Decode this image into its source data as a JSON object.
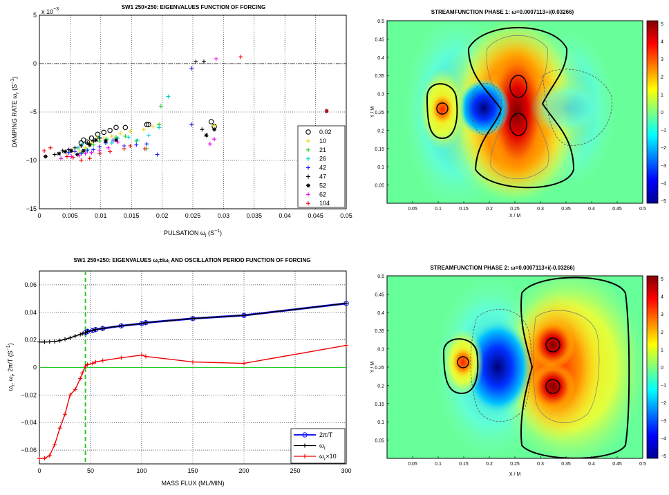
{
  "chart_data": [
    {
      "type": "scatter",
      "title": "SW1 250×250: EIGENVALUES FUNCTION OF FORCING",
      "xlabel": "PULSATION ω",
      "xlabel_sub": "i",
      "xlabel_unit": "(S",
      "xlabel_unit_sup": "−1",
      "xlabel_unit_end": ")",
      "ylabel": "DAMPING RATE ω",
      "ylabel_sub": "r",
      "ylabel_unit": "(S",
      "ylabel_unit_sup": "−1",
      "ylabel_unit_end": ")",
      "exponent_label": "x 10",
      "exponent_power": "−3",
      "xlim": [
        0,
        0.05
      ],
      "ylim": [
        -15,
        5
      ],
      "xticks": [
        "0",
        "0.005",
        "0.01",
        "0.015",
        "0.02",
        "0.025",
        "0.03",
        "0.035",
        "0.04",
        "0.045",
        "0.05"
      ],
      "yticks": [
        "5",
        "0",
        "−5",
        "−10",
        "−15"
      ],
      "grid": true,
      "legend_position": "bottom-right",
      "series": [
        {
          "name": "0.02",
          "color": "#000000",
          "marker": "circle",
          "x": [
            0.0068,
            0.0072,
            0.0078,
            0.0085,
            0.0095,
            0.0105,
            0.0115,
            0.0125,
            0.014,
            0.0175,
            0.0178,
            0.028,
            0.0285
          ],
          "y": [
            -8.2,
            -7.9,
            -8.1,
            -7.7,
            -7.3,
            -7.1,
            -6.9,
            -6.6,
            -6.6,
            -6.3,
            -6.3,
            -6.0,
            -6.5
          ]
        },
        {
          "name": "10",
          "color": "#e8d800",
          "marker": "plus",
          "x": [
            0.0065,
            0.0075,
            0.0085,
            0.0095,
            0.0105,
            0.0118,
            0.0132,
            0.0148,
            0.017,
            0.0185,
            0.0195,
            0.0285
          ],
          "y": [
            -9.0,
            -8.7,
            -8.2,
            -7.6,
            -7.7,
            -7.5,
            -7.2,
            -7.0,
            -6.8,
            -6.5,
            -6.3,
            -6.4
          ]
        },
        {
          "name": "21",
          "color": "#22cc22",
          "marker": "plus",
          "x": [
            0.0068,
            0.0078,
            0.0088,
            0.0098,
            0.011,
            0.0125,
            0.014,
            0.0158,
            0.0175,
            0.0195,
            0.0198
          ],
          "y": [
            -9.2,
            -8.9,
            -8.4,
            -8.0,
            -7.8,
            -7.6,
            -7.5,
            -8.0,
            -8.8,
            -6.3,
            -4.4
          ]
        },
        {
          "name": "26",
          "color": "#00d0d0",
          "marker": "plus",
          "x": [
            0.0063,
            0.007,
            0.0078,
            0.0088,
            0.0098,
            0.0108,
            0.0118,
            0.0128,
            0.0145,
            0.016,
            0.0178,
            0.0195,
            0.021
          ],
          "y": [
            -8.7,
            -8.3,
            -8.9,
            -8.0,
            -7.6,
            -7.9,
            -8.2,
            -7.7,
            -7.6,
            -7.9,
            -7.4,
            -6.6,
            -3.4
          ]
        },
        {
          "name": "42",
          "color": "#1a1aff",
          "marker": "plus",
          "x": [
            0.0048,
            0.0058,
            0.0068,
            0.0078,
            0.0088,
            0.0098,
            0.0108,
            0.012,
            0.0138,
            0.0158,
            0.0175,
            0.0192,
            0.0248,
            0.0248
          ],
          "y": [
            -9.2,
            -9.1,
            -9.3,
            -9.0,
            -8.9,
            -8.6,
            -8.2,
            -7.9,
            -8.5,
            -8.4,
            -8.3,
            -9.4,
            -6.3,
            -0.5
          ]
        },
        {
          "name": "47",
          "color": "#000000",
          "marker": "plus",
          "x": [
            0.0025,
            0.0038,
            0.0048,
            0.0058,
            0.0068,
            0.0078,
            0.0088,
            0.0098,
            0.0255,
            0.0265,
            0.0268
          ],
          "y": [
            -9.4,
            -9.0,
            -8.9,
            -8.7,
            -8.5,
            -8.2,
            -8.0,
            -7.7,
            0.2,
            -6.8,
            0.2
          ]
        },
        {
          "name": "52",
          "color": "#000000",
          "marker": "star",
          "x": [
            0.001,
            0.0032,
            0.0042,
            0.0052,
            0.0062,
            0.0072,
            0.0082,
            0.0092,
            0.0108,
            0.0125,
            0.0272,
            0.0285,
            0.0468
          ],
          "y": [
            -9.6,
            -9.3,
            -9.1,
            -9.0,
            -9.4,
            -9.0,
            -8.4,
            -7.9,
            -8.0,
            -7.9,
            -7.4,
            -6.8,
            -4.9
          ]
        },
        {
          "name": "62",
          "color": "#ee00ee",
          "marker": "plus",
          "x": [
            0.0035,
            0.0052,
            0.0065,
            0.0075,
            0.0085,
            0.0098,
            0.0112,
            0.0128,
            0.0278,
            0.0285,
            0.0288,
            0.0468
          ],
          "y": [
            -9.8,
            -9.6,
            -9.5,
            -9.3,
            -9.2,
            -9.0,
            -8.7,
            -8.1,
            -8.3,
            -7.8,
            0.5,
            -4.9
          ]
        },
        {
          "name": "104",
          "color": "#ee0000",
          "marker": "plus",
          "x": [
            0.0008,
            0.0018,
            0.0045,
            0.0055,
            0.0068,
            0.0082,
            0.0098,
            0.0115,
            0.0138,
            0.0148,
            0.0172,
            0.0328,
            0.0468
          ],
          "y": [
            -9.0,
            -8.7,
            -9.6,
            -9.7,
            -10.0,
            -9.8,
            -9.3,
            -9.1,
            -8.8,
            -8.5,
            -8.8,
            0.7,
            -4.9
          ]
        }
      ]
    },
    {
      "type": "line",
      "title": "SW1 250×250: EIGENVALUES ω",
      "title_sub1": "r",
      "title_mid": "±iω",
      "title_sub2": "i",
      "title_end": " AND OSCILLATION PERIOD FUNCTION OF FORCING",
      "xlabel": "MASS FLUX  (ML/MIN)",
      "ylabel": "ω",
      "ylabel_sub1": "r",
      "ylabel_mid": ", ω",
      "ylabel_sub2": "i",
      "ylabel_end": ", 2π/T  (S",
      "ylabel_sup": "−1",
      "ylabel_close": ")",
      "xlim": [
        0,
        300
      ],
      "ylim": [
        -0.07,
        0.07
      ],
      "xticks": [
        "0",
        "50",
        "100",
        "150",
        "200",
        "250",
        "300"
      ],
      "yticks": [
        "0.06",
        "0.04",
        "0.02",
        "0",
        "−0.02",
        "−0.04",
        "−0.06"
      ],
      "grid": true,
      "legend_position": "bottom-right",
      "vline_x": 45,
      "series": [
        {
          "name": "2π/T",
          "color": "#1a1aff",
          "marker": "circle",
          "x": [
            45,
            47,
            52,
            55,
            62,
            80,
            100,
            104,
            150,
            200,
            300
          ],
          "y": [
            0.0252,
            0.0262,
            0.0268,
            0.0275,
            0.0283,
            0.0302,
            0.0318,
            0.0325,
            0.0355,
            0.0378,
            0.0465
          ]
        },
        {
          "name": "ω",
          "name_sub": "i",
          "color": "#000000",
          "marker": "plus",
          "x": [
            0,
            5,
            10,
            15,
            20,
            25,
            30,
            35,
            40,
            42,
            45,
            47,
            52,
            55,
            62,
            80,
            100,
            104,
            150,
            200,
            300
          ],
          "y": [
            0.0185,
            0.0185,
            0.0186,
            0.0188,
            0.0195,
            0.0205,
            0.0215,
            0.0228,
            0.024,
            0.0245,
            0.0252,
            0.0262,
            0.0268,
            0.0275,
            0.0283,
            0.0302,
            0.0318,
            0.0325,
            0.0355,
            0.0378,
            0.0465
          ]
        },
        {
          "name": "ω",
          "name_sub": "r",
          "name_end": "×10",
          "color": "#ee0000",
          "marker": "plus",
          "x": [
            0,
            5,
            10,
            15,
            20,
            25,
            30,
            35,
            40,
            42,
            45,
            47,
            52,
            55,
            62,
            80,
            100,
            104,
            150,
            200,
            300
          ],
          "y": [
            -0.066,
            -0.066,
            -0.064,
            -0.056,
            -0.044,
            -0.034,
            -0.02,
            -0.016,
            -0.008,
            -0.004,
            0.001,
            0.002,
            0.003,
            0.004,
            0.005,
            0.007,
            0.009,
            0.008,
            0.004,
            0.003,
            0.016
          ]
        }
      ]
    },
    {
      "type": "heatmap",
      "title": "STREAMFUNCTION PHASE 1:  ω=0.0007113+i(0.03266)",
      "xlabel": "X / M",
      "ylabel": "Y / M",
      "xlim": [
        0,
        0.5
      ],
      "ylim": [
        0,
        0.5
      ],
      "xticks": [
        "0.05",
        "0.1",
        "0.15",
        "0.2",
        "0.25",
        "0.3",
        "0.35",
        "0.4",
        "0.45",
        "0.5"
      ],
      "yticks": [
        "0.5",
        "0.45",
        "0.4",
        "0.35",
        "0.3",
        "0.25",
        "0.2",
        "0.15",
        "0.1",
        "0.05"
      ],
      "colorbar_ticks": [
        "5",
        "4",
        "3",
        "2",
        "1",
        "0",
        "−1",
        "−2",
        "−3",
        "−4",
        "−5"
      ],
      "colormap": "jet"
    },
    {
      "type": "heatmap",
      "title": "STREAMFUNCTION PHASE 2:  ω=0.0007113+i(-0.03266)",
      "xlabel": "X / M",
      "ylabel": "Y / M",
      "xlim": [
        0,
        0.5
      ],
      "ylim": [
        0,
        0.5
      ],
      "xticks": [
        "0.05",
        "0.1",
        "0.15",
        "0.2",
        "0.25",
        "0.3",
        "0.35",
        "0.4",
        "0.45",
        "0.5"
      ],
      "yticks": [
        "0.5",
        "0.45",
        "0.4",
        "0.35",
        "0.3",
        "0.25",
        "0.2",
        "0.15",
        "0.1",
        "0.05"
      ],
      "colorbar_ticks": [
        "5",
        "4",
        "3",
        "2",
        "1",
        "0",
        "−1",
        "−2",
        "−3",
        "−4",
        "−5"
      ],
      "colormap": "jet"
    }
  ]
}
